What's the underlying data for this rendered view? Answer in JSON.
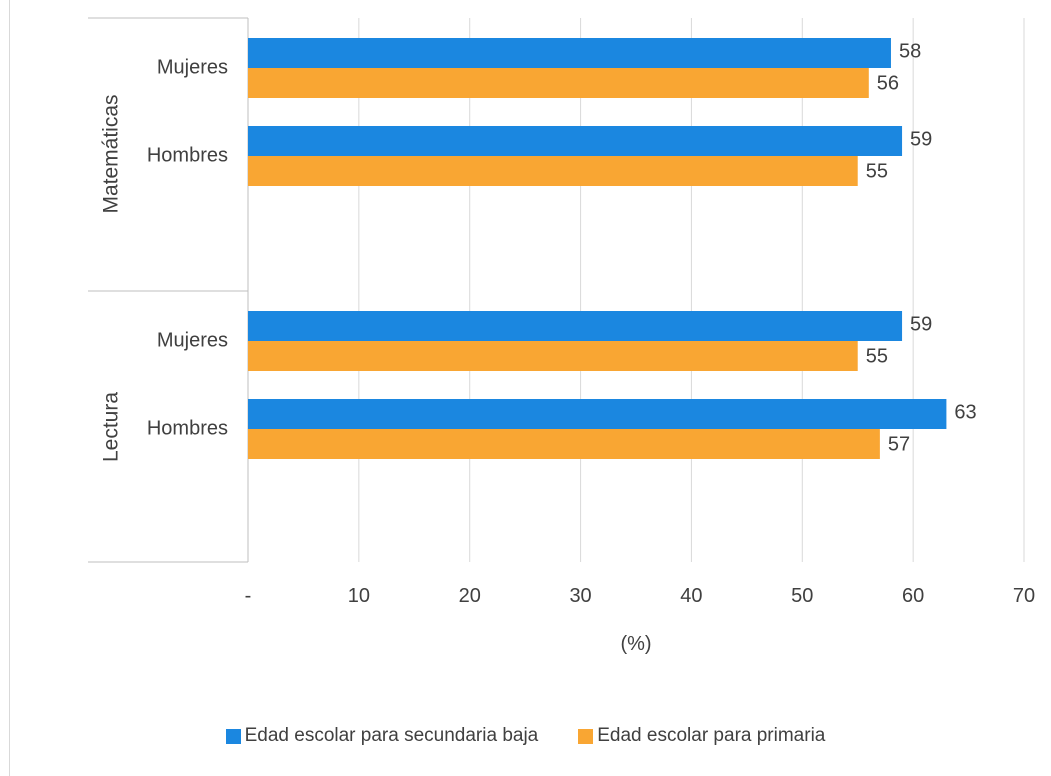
{
  "chart_data": {
    "type": "bar",
    "orientation": "horizontal",
    "groups": [
      {
        "name": "Matemáticas",
        "categories": [
          "Mujeres",
          "Hombres"
        ]
      },
      {
        "name": "Lectura",
        "categories": [
          "Mujeres",
          "Hombres"
        ]
      }
    ],
    "series": [
      {
        "name": "Edad escolar para secundaria baja",
        "color": "#1b87e0",
        "values": [
          [
            58,
            59
          ],
          [
            59,
            63
          ]
        ]
      },
      {
        "name": "Edad escolar para primaria",
        "color": "#f9a633",
        "values": [
          [
            56,
            55
          ],
          [
            55,
            57
          ]
        ]
      }
    ],
    "xlabel": "(%)",
    "xlim": [
      0,
      70
    ],
    "xticks": [
      "-",
      "10",
      "20",
      "30",
      "40",
      "50",
      "60",
      "70"
    ],
    "grid": true,
    "legend": "bottom"
  }
}
